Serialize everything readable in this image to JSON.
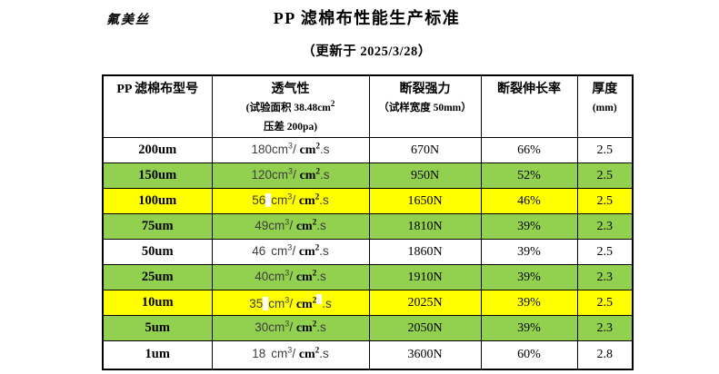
{
  "header": {
    "brand": "氟美丝",
    "title": "PP 滤棉布性能生产标准",
    "subtitle": "（更新于 2025/3/28）"
  },
  "table": {
    "headers": {
      "model": "PP 滤棉布型号",
      "perm_title": "透气性",
      "perm_sub1": "(试验面积 38.48cm",
      "perm_sub1_sup": "2",
      "perm_sub2": "压差 200pa)",
      "strength_title": "断裂强力",
      "strength_sub": "（试样宽度 50mm）",
      "elongation": "断裂伸长率",
      "thickness_title": "厚度",
      "thickness_sub": "(mm)"
    },
    "unit": {
      "u1": "cm",
      "sup1": "3",
      "slash": "/ ",
      "u2": "cm",
      "sup2": "2",
      "tail": ".s"
    },
    "rows": [
      {
        "model": "200um",
        "num": "180",
        "sep": "",
        "sep_hl": false,
        "sup_hl": false,
        "strength": "670N",
        "elongation": "66%",
        "thickness": "2.5",
        "bg": "white"
      },
      {
        "model": "150um",
        "num": "120",
        "sep": "",
        "sep_hl": false,
        "sup_hl": false,
        "strength": "950N",
        "elongation": "52%",
        "thickness": "2.5",
        "bg": "green"
      },
      {
        "model": "100um",
        "num": "56",
        "sep": " ",
        "sep_hl": true,
        "sup_hl": false,
        "strength": "1650N",
        "elongation": "46%",
        "thickness": "2.5",
        "bg": "yellow"
      },
      {
        "model": "75um",
        "num": "49",
        "sep": "",
        "sep_hl": false,
        "sup_hl": false,
        "strength": "1810N",
        "elongation": "39%",
        "thickness": "2.3",
        "bg": "green"
      },
      {
        "model": "50um",
        "num": "46",
        "sep": " ",
        "sep_hl": false,
        "sup_hl": false,
        "strength": "1860N",
        "elongation": "39%",
        "thickness": "2.5",
        "bg": "white"
      },
      {
        "model": "25um",
        "num": "40",
        "sep": "",
        "sep_hl": false,
        "sup_hl": false,
        "strength": "1910N",
        "elongation": "39%",
        "thickness": "2.3",
        "bg": "green"
      },
      {
        "model": "10um",
        "num": "35",
        "sep": " ",
        "sep_hl": true,
        "sup_hl": true,
        "strength": "2025N",
        "elongation": "39%",
        "thickness": "2.5",
        "bg": "yellow"
      },
      {
        "model": "5um",
        "num": "30",
        "sep": "",
        "sep_hl": false,
        "sup_hl": false,
        "strength": "2050N",
        "elongation": "39%",
        "thickness": "2.3",
        "bg": "green"
      },
      {
        "model": "1um",
        "num": "18",
        "sep": " ",
        "sep_hl": false,
        "sup_hl": false,
        "strength": "3600N",
        "elongation": "60%",
        "thickness": "2.8",
        "bg": "white"
      }
    ]
  },
  "colors": {
    "row_green": "#92d050",
    "row_yellow": "#ffff00",
    "border": "#000000"
  }
}
